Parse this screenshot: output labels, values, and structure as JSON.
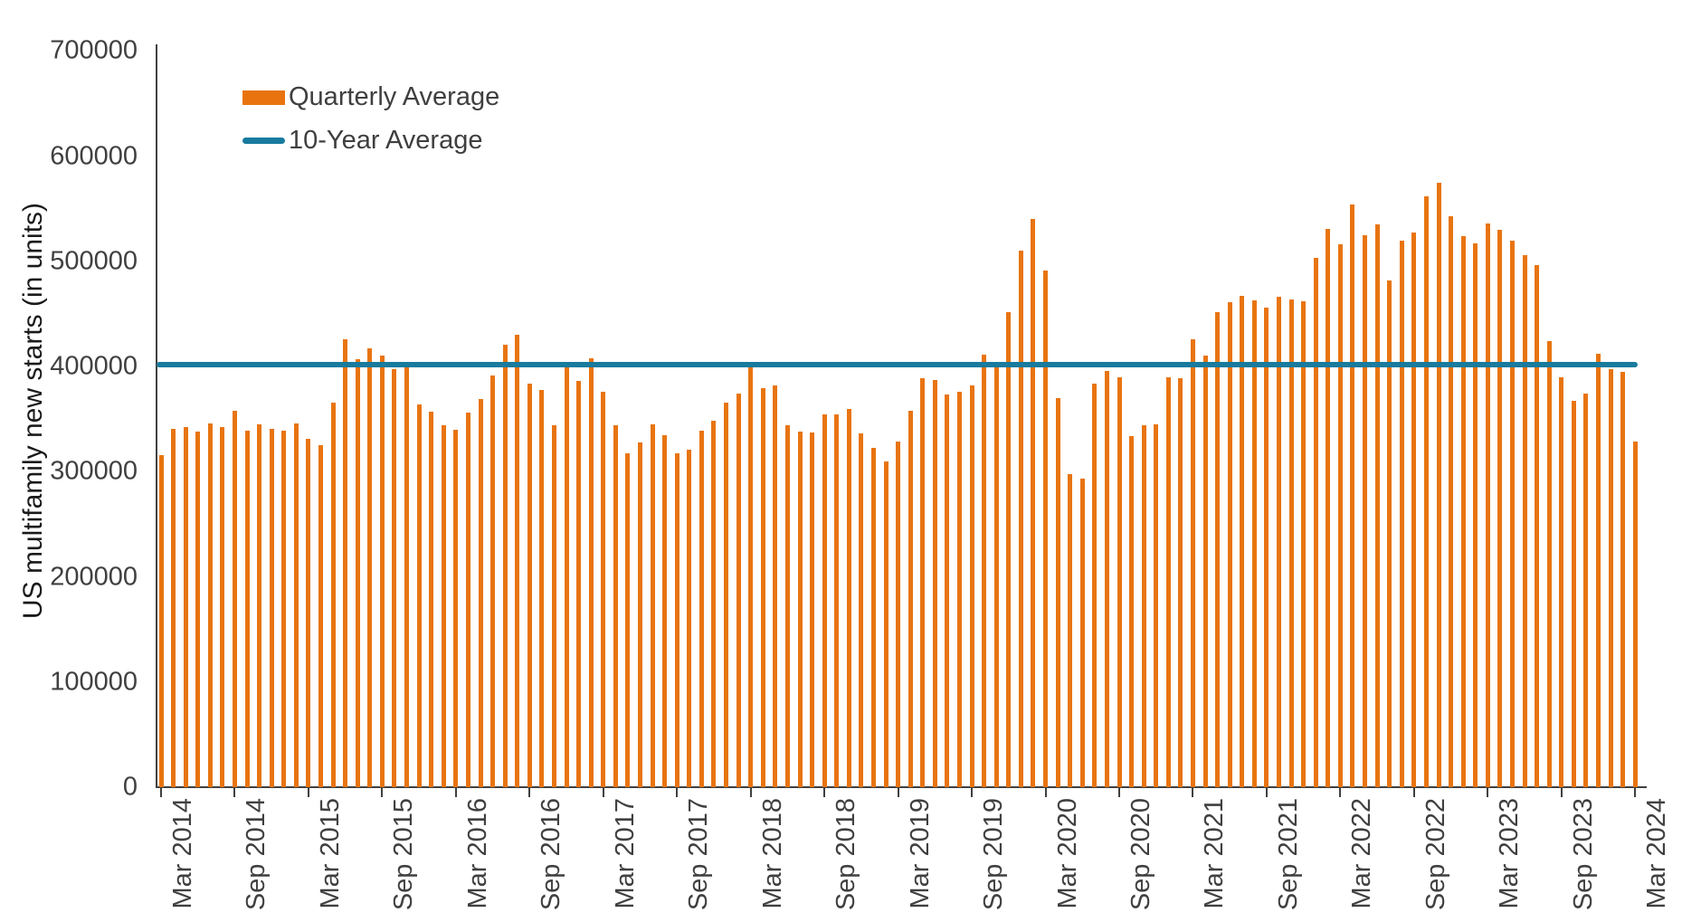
{
  "chart_data": {
    "type": "bar",
    "title": "",
    "ylabel": "US multifamily new starts (in units)",
    "xlabel": "",
    "ylim": [
      0,
      700000
    ],
    "y_ticks": [
      0,
      100000,
      200000,
      300000,
      400000,
      500000,
      600000,
      700000
    ],
    "grid": "off",
    "legend_position": "top-left-inside",
    "legend": [
      {
        "label": "Quarterly Average",
        "color": "#E87410",
        "swatch": "bar"
      },
      {
        "label": "10-Year Average",
        "color": "#187B9E",
        "swatch": "line"
      }
    ],
    "x_tick_labels": [
      "Mar 2014",
      "Sep 2014",
      "Mar 2015",
      "Sep 2015",
      "Mar 2016",
      "Sep 2016",
      "Mar 2017",
      "Sep 2017",
      "Mar 2018",
      "Sep 2018",
      "Mar 2019",
      "Sep 2019",
      "Mar 2020",
      "Sep 2020",
      "Mar 2021",
      "Sep 2021",
      "Mar 2022",
      "Sep 2022",
      "Mar 2023",
      "Sep 2023",
      "Mar 2024"
    ],
    "x_tick_every": 6,
    "series": [
      {
        "name": "Quarterly Average",
        "type": "bar",
        "color": "#E87410",
        "x": [
          "Mar 2014",
          "Apr 2014",
          "May 2014",
          "Jun 2014",
          "Jul 2014",
          "Aug 2014",
          "Sep 2014",
          "Oct 2014",
          "Nov 2014",
          "Dec 2014",
          "Jan 2015",
          "Feb 2015",
          "Mar 2015",
          "Apr 2015",
          "May 2015",
          "Jun 2015",
          "Jul 2015",
          "Aug 2015",
          "Sep 2015",
          "Oct 2015",
          "Nov 2015",
          "Dec 2015",
          "Jan 2016",
          "Feb 2016",
          "Mar 2016",
          "Apr 2016",
          "May 2016",
          "Jun 2016",
          "Jul 2016",
          "Aug 2016",
          "Sep 2016",
          "Oct 2016",
          "Nov 2016",
          "Dec 2016",
          "Jan 2017",
          "Feb 2017",
          "Mar 2017",
          "Apr 2017",
          "May 2017",
          "Jun 2017",
          "Jul 2017",
          "Aug 2017",
          "Sep 2017",
          "Oct 2017",
          "Nov 2017",
          "Dec 2017",
          "Jan 2018",
          "Feb 2018",
          "Mar 2018",
          "Apr 2018",
          "May 2018",
          "Jun 2018",
          "Jul 2018",
          "Aug 2018",
          "Sep 2018",
          "Oct 2018",
          "Nov 2018",
          "Dec 2018",
          "Jan 2019",
          "Feb 2019",
          "Mar 2019",
          "Apr 2019",
          "May 2019",
          "Jun 2019",
          "Jul 2019",
          "Aug 2019",
          "Sep 2019",
          "Oct 2019",
          "Nov 2019",
          "Dec 2019",
          "Jan 2020",
          "Feb 2020",
          "Mar 2020",
          "Apr 2020",
          "May 2020",
          "Jun 2020",
          "Jul 2020",
          "Aug 2020",
          "Sep 2020",
          "Oct 2020",
          "Nov 2020",
          "Dec 2020",
          "Jan 2021",
          "Feb 2021",
          "Mar 2021",
          "Apr 2021",
          "May 2021",
          "Jun 2021",
          "Jul 2021",
          "Aug 2021",
          "Sep 2021",
          "Oct 2021",
          "Nov 2021",
          "Dec 2021",
          "Jan 2022",
          "Feb 2022",
          "Mar 2022",
          "Apr 2022",
          "May 2022",
          "Jun 2022",
          "Jul 2022",
          "Aug 2022",
          "Sep 2022",
          "Oct 2022",
          "Nov 2022",
          "Dec 2022",
          "Jan 2023",
          "Feb 2023",
          "Mar 2023",
          "Apr 2023",
          "May 2023",
          "Jun 2023",
          "Jul 2023",
          "Aug 2023",
          "Sep 2023",
          "Oct 2023",
          "Nov 2023",
          "Dec 2023",
          "Jan 2024",
          "Feb 2024",
          "Mar 2024"
        ],
        "values": [
          316000,
          341000,
          342000,
          338000,
          346000,
          342000,
          358000,
          339000,
          345000,
          341000,
          339000,
          346000,
          331000,
          325000,
          366000,
          426000,
          407000,
          417000,
          410000,
          397000,
          399000,
          364000,
          357000,
          344000,
          340000,
          356000,
          369000,
          391000,
          421000,
          430000,
          384000,
          378000,
          344000,
          400000,
          386000,
          408000,
          376000,
          344000,
          317000,
          328000,
          345000,
          335000,
          317000,
          321000,
          339000,
          348000,
          366000,
          374000,
          400000,
          379000,
          382000,
          344000,
          338000,
          337000,
          354000,
          354000,
          360000,
          336000,
          323000,
          310000,
          329000,
          358000,
          389000,
          387000,
          373000,
          376000,
          382000,
          411000,
          400000,
          452000,
          510000,
          540000,
          491000,
          370000,
          298000,
          293000,
          384000,
          396000,
          390000,
          334000,
          344000,
          345000,
          390000,
          389000,
          426000,
          410000,
          452000,
          461000,
          467000,
          463000,
          456000,
          466000,
          464000,
          462000,
          503000,
          531000,
          516000,
          554000,
          525000,
          535000,
          482000,
          520000,
          527000,
          562000,
          575000,
          543000,
          524000,
          517000,
          536000,
          530000,
          520000,
          506000,
          496000,
          424000,
          390000,
          367000,
          374000,
          412000,
          397000,
          395000,
          329000
        ]
      },
      {
        "name": "10-Year Average",
        "type": "line",
        "color": "#187B9E",
        "value": 402000
      }
    ]
  }
}
